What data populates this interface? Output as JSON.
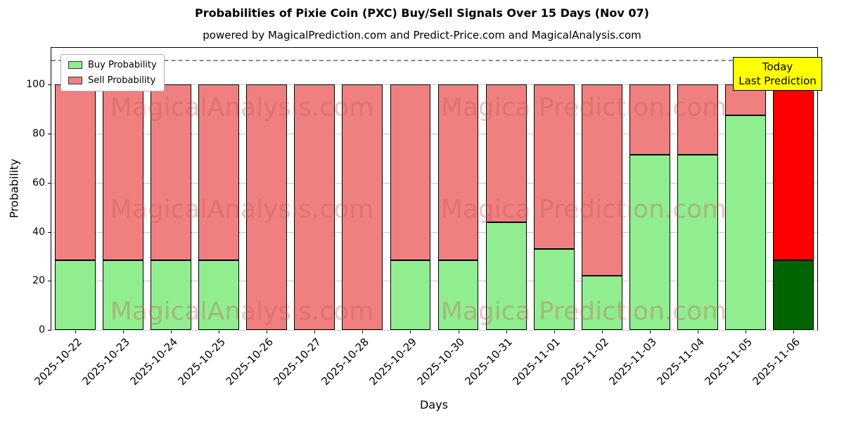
{
  "chart_data": {
    "type": "bar",
    "stacked": true,
    "title": "Probabilities of Pixie Coin (PXC) Buy/Sell Signals Over 15 Days (Nov 07)",
    "subtitle": "powered by MagicalPrediction.com and Predict-Price.com and MagicalAnalysis.com",
    "xlabel": "Days",
    "ylabel": "Probability",
    "ylim": [
      0,
      115
    ],
    "yticks": [
      0,
      20,
      40,
      60,
      80,
      100
    ],
    "dashed_line_y": 110,
    "grid": true,
    "legend_position": "upper left",
    "categories": [
      "2025-10-22",
      "2025-10-23",
      "2025-10-24",
      "2025-10-25",
      "2025-10-26",
      "2025-10-27",
      "2025-10-28",
      "2025-10-29",
      "2025-10-30",
      "2025-10-31",
      "2025-11-01",
      "2025-11-02",
      "2025-11-03",
      "2025-11-04",
      "2025-11-05",
      "2025-11-06"
    ],
    "series": [
      {
        "name": "Buy Probability",
        "color": "#90ee90",
        "values": [
          28.5,
          28.5,
          28.5,
          28.5,
          0,
          0,
          0,
          28.5,
          28.5,
          44,
          33,
          22,
          71.5,
          71.5,
          87.5,
          28.5
        ]
      },
      {
        "name": "Sell Probability",
        "color": "#f08080",
        "values": [
          71.5,
          71.5,
          71.5,
          71.5,
          100,
          100,
          100,
          71.5,
          71.5,
          56,
          67,
          78,
          28.5,
          28.5,
          12.5,
          71.5
        ]
      }
    ],
    "today_colors": {
      "buy": "#006400",
      "sell": "#ff0000"
    },
    "annotation": {
      "line1": "Today",
      "line2": "Last Prediction",
      "bg": "#ffff00"
    },
    "watermarks": [
      "MagicalAnalysis.com",
      "Magica Prediction.com"
    ]
  }
}
